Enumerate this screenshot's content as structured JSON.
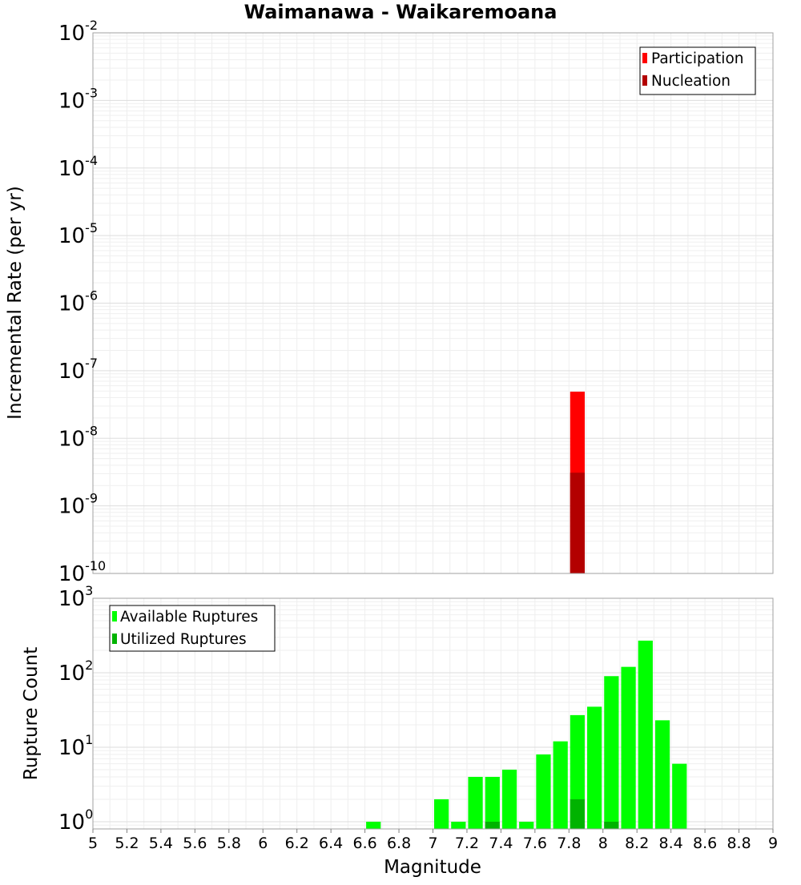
{
  "chart_data": [
    {
      "type": "bar",
      "title": "Waimanawa - Waikaremoana",
      "ylabel": "Incremental Rate (per yr)",
      "xlabel": "",
      "xlim": [
        5,
        9
      ],
      "ylim": [
        1e-10,
        0.01
      ],
      "yscale": "log",
      "grid": true,
      "legend_position": "top-right",
      "bin_width": 0.1,
      "series": [
        {
          "name": "Participation",
          "color": "#ff0000",
          "x": [
            7.85
          ],
          "values": [
            4.9e-08
          ]
        },
        {
          "name": "Nucleation",
          "color": "#b30000",
          "x": [
            7.85
          ],
          "values": [
            3.1e-09
          ]
        }
      ]
    },
    {
      "type": "bar",
      "title": "",
      "ylabel": "Rupture Count",
      "xlabel": "Magnitude",
      "xlim": [
        5,
        9
      ],
      "ylim": [
        0.8,
        1000
      ],
      "yscale": "log",
      "grid": true,
      "legend_position": "top-left",
      "bin_width": 0.1,
      "series": [
        {
          "name": "Available Ruptures",
          "color": "#00ff00",
          "x": [
            6.65,
            7.05,
            7.15,
            7.25,
            7.35,
            7.45,
            7.55,
            7.65,
            7.75,
            7.85,
            7.95,
            8.05,
            8.15,
            8.25,
            8.35,
            8.45
          ],
          "values": [
            1,
            2,
            1,
            4,
            4,
            5,
            1,
            8,
            12,
            27,
            35,
            90,
            120,
            270,
            23,
            6
          ]
        },
        {
          "name": "Utilized Ruptures",
          "color": "#00b300",
          "x": [
            7.35,
            7.85,
            8.05
          ],
          "values": [
            1,
            2,
            1
          ]
        }
      ]
    }
  ],
  "x_ticks": [
    "5",
    "5.2",
    "5.4",
    "5.6",
    "5.8",
    "6",
    "6.2",
    "6.4",
    "6.6",
    "6.8",
    "7",
    "7.2",
    "7.4",
    "7.6",
    "7.8",
    "8",
    "8.2",
    "8.4",
    "8.6",
    "8.8",
    "9"
  ],
  "top_y_ticks": [
    {
      "base": "10",
      "exp": "-10",
      "value": 1e-10
    },
    {
      "base": "10",
      "exp": "-9",
      "value": 1e-09
    },
    {
      "base": "10",
      "exp": "-8",
      "value": 1e-08
    },
    {
      "base": "10",
      "exp": "-7",
      "value": 1e-07
    },
    {
      "base": "10",
      "exp": "-6",
      "value": 1e-06
    },
    {
      "base": "10",
      "exp": "-5",
      "value": 1e-05
    },
    {
      "base": "10",
      "exp": "-4",
      "value": 0.0001
    },
    {
      "base": "10",
      "exp": "-3",
      "value": 0.001
    },
    {
      "base": "10",
      "exp": "-2",
      "value": 0.01
    }
  ],
  "bottom_y_ticks": [
    {
      "base": "10",
      "exp": "0",
      "value": 1
    },
    {
      "base": "10",
      "exp": "1",
      "value": 10
    },
    {
      "base": "10",
      "exp": "2",
      "value": 100
    },
    {
      "base": "10",
      "exp": "3",
      "value": 1000
    }
  ]
}
